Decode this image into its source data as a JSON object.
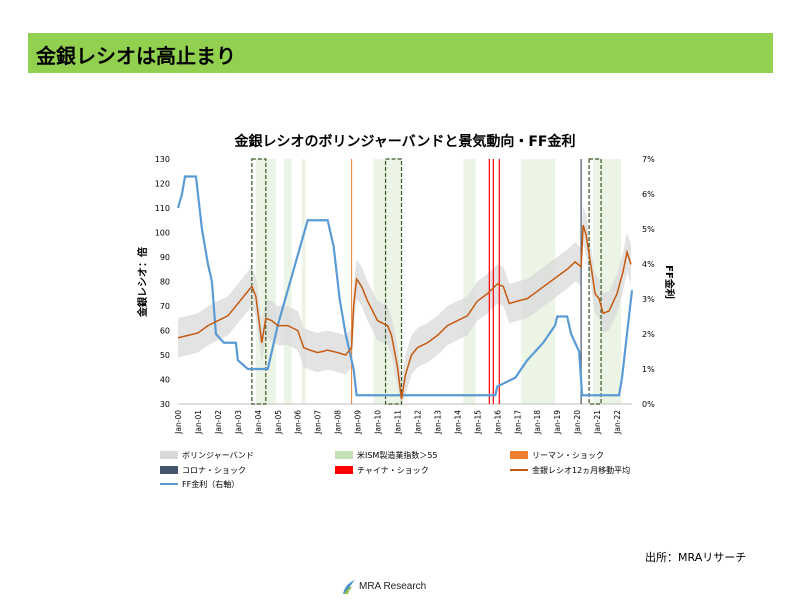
{
  "header": {
    "title": "金銀レシオは高止まり"
  },
  "source": "出所：MRAリサーチ",
  "logo": {
    "text": "MRA Research",
    "color": "#4a8fc1"
  },
  "chart_data": {
    "type": "line",
    "title": "金銀レシオのボリンジャーバンドと景気動向・FF金利",
    "ylabel": "金銀レシオ：倍",
    "y2label": "FF金利",
    "ylim": [
      30,
      130
    ],
    "yticks": [
      30,
      40,
      50,
      60,
      70,
      80,
      90,
      100,
      110,
      120,
      130
    ],
    "y2lim": [
      0,
      7
    ],
    "y2ticks": [
      "0%",
      "1%",
      "2%",
      "3%",
      "4%",
      "5%",
      "6%",
      "7%"
    ],
    "xlim": [
      2000.0,
      2022.75
    ],
    "xticks": [
      "Jan-00",
      "Jan-01",
      "Jan-02",
      "Jan-03",
      "Jan-04",
      "Jan-05",
      "Jan-06",
      "Jan-07",
      "Jan-08",
      "Jan-09",
      "Jan-10",
      "Jan-11",
      "Jan-12",
      "Jan-13",
      "Jan-14",
      "Jan-15",
      "Jan-16",
      "Jan-17",
      "Jan-18",
      "Jan-19",
      "Jan-20",
      "Jan-21",
      "Jan-22"
    ],
    "colors": {
      "band": "#d9d9d9",
      "ism": "#c5e0b4",
      "lehman": "#ed7d31",
      "corona": "#44546a",
      "china": "#ff0000",
      "ratio": "#c55a11",
      "ff": "#5b9bd5",
      "highlight": "#375623"
    },
    "legend": [
      {
        "key": "band",
        "label": "ボリンジャーバンド"
      },
      {
        "key": "ism",
        "label": "米ISM製造業指数＞55"
      },
      {
        "key": "lehman",
        "label": "リーマン・ショック"
      },
      {
        "key": "corona",
        "label": "コロナ・ショック"
      },
      {
        "key": "china",
        "label": "チャイナ・ショック"
      },
      {
        "key": "ratio",
        "label": "金銀レシオ12ヵ月移動平均"
      },
      {
        "key": "ff",
        "label": "FF金利（右軸）"
      }
    ],
    "events": {
      "lehman": [
        2008.7
      ],
      "china": [
        2015.6,
        2015.8,
        2016.1
      ],
      "corona": [
        2020.2
      ]
    },
    "highlight_periods": [
      [
        2003.7,
        2004.4
      ],
      [
        2010.4,
        2011.2
      ],
      [
        2020.6,
        2021.2
      ]
    ],
    "ism_periods": [
      [
        2003.9,
        2004.9
      ],
      [
        2005.3,
        2005.7
      ],
      [
        2006.2,
        2006.4
      ],
      [
        2009.8,
        2011.2
      ],
      [
        2014.3,
        2014.9
      ],
      [
        2017.2,
        2018.9
      ],
      [
        2020.8,
        2022.2
      ]
    ],
    "series": [
      {
        "name": "金銀レシオ12ヵ月移動平均",
        "key": "ratio",
        "points": [
          [
            2000.0,
            57
          ],
          [
            2000.5,
            58
          ],
          [
            2001.0,
            59
          ],
          [
            2001.5,
            62
          ],
          [
            2002.0,
            64
          ],
          [
            2002.5,
            66
          ],
          [
            2003.0,
            71
          ],
          [
            2003.4,
            75
          ],
          [
            2003.7,
            78
          ],
          [
            2003.9,
            74
          ],
          [
            2004.2,
            55
          ],
          [
            2004.4,
            65
          ],
          [
            2004.7,
            64
          ],
          [
            2005.0,
            62
          ],
          [
            2005.5,
            62
          ],
          [
            2006.0,
            60
          ],
          [
            2006.3,
            53
          ],
          [
            2006.6,
            52
          ],
          [
            2007.0,
            51
          ],
          [
            2007.5,
            52
          ],
          [
            2008.0,
            51
          ],
          [
            2008.4,
            50
          ],
          [
            2008.7,
            53
          ],
          [
            2008.8,
            70
          ],
          [
            2008.95,
            81
          ],
          [
            2009.2,
            78
          ],
          [
            2009.5,
            72
          ],
          [
            2010.0,
            64
          ],
          [
            2010.5,
            62
          ],
          [
            2010.7,
            58
          ],
          [
            2011.0,
            45
          ],
          [
            2011.2,
            32
          ],
          [
            2011.4,
            42
          ],
          [
            2011.7,
            50
          ],
          [
            2012.0,
            53
          ],
          [
            2012.5,
            55
          ],
          [
            2013.0,
            58
          ],
          [
            2013.5,
            62
          ],
          [
            2014.0,
            64
          ],
          [
            2014.5,
            66
          ],
          [
            2015.0,
            72
          ],
          [
            2015.5,
            75
          ],
          [
            2016.0,
            79
          ],
          [
            2016.3,
            78
          ],
          [
            2016.6,
            71
          ],
          [
            2017.0,
            72
          ],
          [
            2017.5,
            73
          ],
          [
            2018.0,
            76
          ],
          [
            2018.5,
            79
          ],
          [
            2019.0,
            82
          ],
          [
            2019.5,
            85
          ],
          [
            2019.9,
            88
          ],
          [
            2020.2,
            86
          ],
          [
            2020.3,
            103
          ],
          [
            2020.45,
            99
          ],
          [
            2020.7,
            86
          ],
          [
            2020.9,
            75
          ],
          [
            2021.1,
            73
          ],
          [
            2021.3,
            67
          ],
          [
            2021.6,
            68
          ],
          [
            2022.0,
            75
          ],
          [
            2022.3,
            84
          ],
          [
            2022.5,
            92
          ],
          [
            2022.7,
            87
          ]
        ]
      },
      {
        "name": "FF金利（右軸）",
        "key": "ff",
        "axis": "right",
        "points": [
          [
            2000.0,
            5.6
          ],
          [
            2000.2,
            6.0
          ],
          [
            2000.35,
            6.5
          ],
          [
            2000.9,
            6.5
          ],
          [
            2001.0,
            6.0
          ],
          [
            2001.2,
            5.0
          ],
          [
            2001.5,
            4.0
          ],
          [
            2001.7,
            3.5
          ],
          [
            2001.9,
            2.0
          ],
          [
            2002.3,
            1.75
          ],
          [
            2002.9,
            1.75
          ],
          [
            2003.0,
            1.25
          ],
          [
            2003.5,
            1.0
          ],
          [
            2004.5,
            1.0
          ],
          [
            2004.8,
            1.75
          ],
          [
            2005.0,
            2.25
          ],
          [
            2005.5,
            3.25
          ],
          [
            2006.0,
            4.25
          ],
          [
            2006.5,
            5.25
          ],
          [
            2007.5,
            5.25
          ],
          [
            2007.8,
            4.5
          ],
          [
            2008.1,
            3.0
          ],
          [
            2008.4,
            2.0
          ],
          [
            2008.8,
            1.0
          ],
          [
            2008.95,
            0.25
          ],
          [
            2015.9,
            0.25
          ],
          [
            2016.0,
            0.5
          ],
          [
            2016.9,
            0.75
          ],
          [
            2017.2,
            1.0
          ],
          [
            2017.5,
            1.25
          ],
          [
            2017.9,
            1.5
          ],
          [
            2018.3,
            1.75
          ],
          [
            2018.6,
            2.0
          ],
          [
            2018.9,
            2.25
          ],
          [
            2019.0,
            2.5
          ],
          [
            2019.5,
            2.5
          ],
          [
            2019.7,
            2.0
          ],
          [
            2019.9,
            1.75
          ],
          [
            2020.1,
            1.5
          ],
          [
            2020.25,
            0.25
          ],
          [
            2022.1,
            0.25
          ],
          [
            2022.25,
            0.75
          ],
          [
            2022.4,
            1.5
          ],
          [
            2022.6,
            2.5
          ],
          [
            2022.75,
            3.25
          ]
        ]
      }
    ]
  }
}
